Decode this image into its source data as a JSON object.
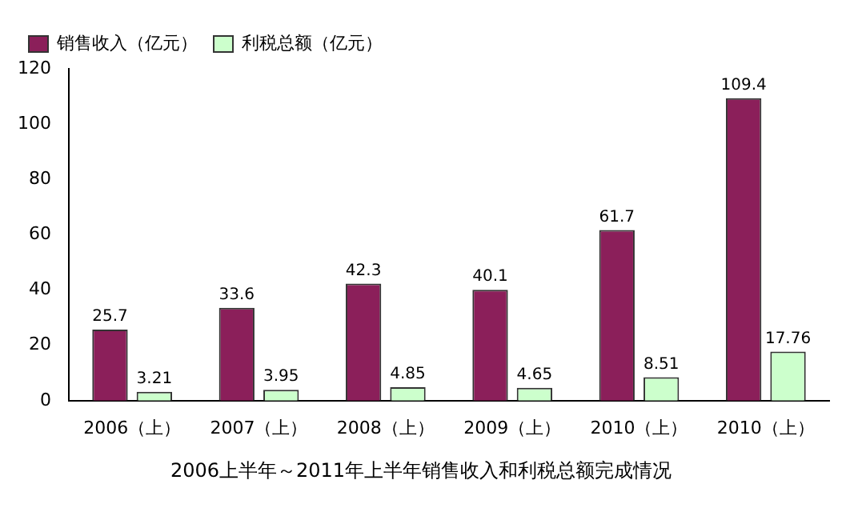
{
  "chart_data": {
    "type": "bar",
    "title": "2006上半年～2011年上半年销售收入和利税总额完成情况",
    "categories": [
      "2006（上）",
      "2007（上）",
      "2008（上）",
      "2009（上）",
      "2010（上）",
      "2010（上）"
    ],
    "series": [
      {
        "name": "销售收入（亿元）",
        "color": "#8b1f5a",
        "values": [
          25.7,
          33.6,
          42.3,
          40.1,
          61.7,
          109.4
        ]
      },
      {
        "name": "利税总额（亿元）",
        "color": "#ccffcc",
        "values": [
          3.21,
          3.95,
          4.85,
          4.65,
          8.51,
          17.76
        ]
      }
    ],
    "ylim": [
      0,
      120
    ],
    "yticks": [
      0,
      20,
      40,
      60,
      80,
      100,
      120
    ],
    "grid": false,
    "legend": "top left",
    "data_labels": true
  }
}
